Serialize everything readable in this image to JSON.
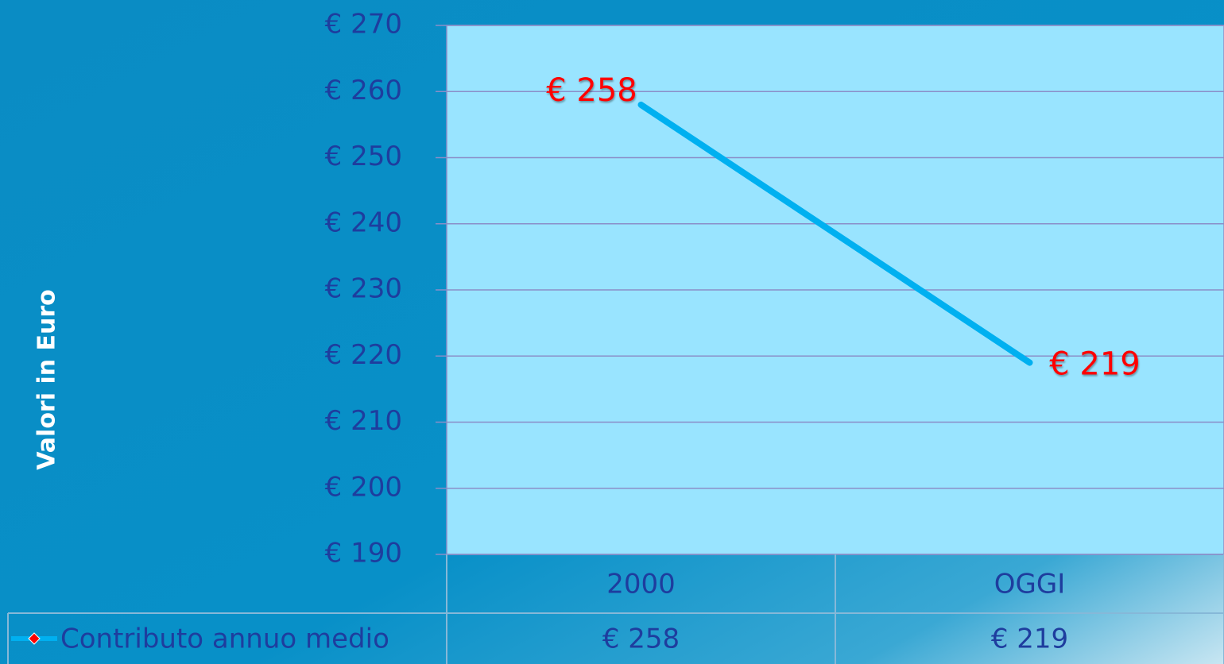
{
  "chart_data": {
    "type": "line",
    "y_axis_label": "Valori in Euro",
    "categories": [
      "2000",
      "OGGI"
    ],
    "series": [
      {
        "name": "Contributo annuo medio",
        "color": "#00b0f0",
        "values": [
          258,
          219
        ],
        "value_labels": [
          "€ 258",
          "€ 219"
        ]
      }
    ],
    "ylim": [
      190,
      270
    ],
    "yticks": [
      {
        "value": 190,
        "label": "€ 190"
      },
      {
        "value": 200,
        "label": "€ 200"
      },
      {
        "value": 210,
        "label": "€ 210"
      },
      {
        "value": 220,
        "label": "€ 220"
      },
      {
        "value": 230,
        "label": "€ 230"
      },
      {
        "value": 240,
        "label": "€ 240"
      },
      {
        "value": 250,
        "label": "€ 250"
      },
      {
        "value": 260,
        "label": "€ 260"
      },
      {
        "value": 270,
        "label": "€ 270"
      }
    ],
    "grid": true,
    "data_table": true
  }
}
